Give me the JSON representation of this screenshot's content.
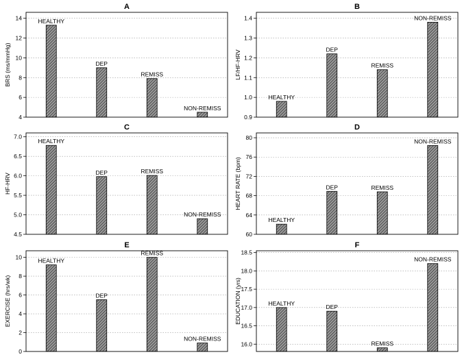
{
  "chart_data": [
    {
      "type": "bar",
      "title": "A",
      "ylabel": "BRS (ms/mmHg)",
      "categories": [
        "HEALTHY",
        "DEP",
        "REMISS",
        "NON-REMISS"
      ],
      "values": [
        13.3,
        9.0,
        7.9,
        4.5
      ],
      "ylim": [
        4,
        14.6
      ],
      "yticks": [
        4,
        6,
        8,
        10,
        12,
        14
      ],
      "ytick_labels": [
        "4",
        "6",
        "8",
        "10",
        "12",
        "14"
      ],
      "grid": true
    },
    {
      "type": "bar",
      "title": "B",
      "ylabel": "LF/HF-HRV",
      "categories": [
        "HEALTHY",
        "DEP",
        "REMISS",
        "NON-REMISS"
      ],
      "values": [
        0.98,
        1.22,
        1.14,
        1.38
      ],
      "ylim": [
        0.9,
        1.43
      ],
      "yticks": [
        0.9,
        1.0,
        1.1,
        1.2,
        1.3,
        1.4
      ],
      "ytick_labels": [
        "0.9",
        "1.0",
        "1.1",
        "1.2",
        "1.3",
        "1.4"
      ],
      "grid": true
    },
    {
      "type": "bar",
      "title": "C",
      "ylabel": "HF-HRV",
      "categories": [
        "HEALTHY",
        "DEP",
        "REMISS",
        "NON-REMISS"
      ],
      "values": [
        6.78,
        5.98,
        6.01,
        4.9
      ],
      "ylim": [
        4.5,
        7.1
      ],
      "yticks": [
        4.5,
        5.0,
        5.5,
        6.0,
        6.5,
        7.0
      ],
      "ytick_labels": [
        "4.5",
        "5.0",
        "5.5",
        "6.0",
        "6.5",
        "7.0"
      ],
      "grid": true
    },
    {
      "type": "bar",
      "title": "D",
      "ylabel": "HEART RATE (bpm)",
      "categories": [
        "HEALTHY",
        "DEP",
        "REMISS",
        "NON-REMISS"
      ],
      "values": [
        62.1,
        68.9,
        68.8,
        78.4
      ],
      "ylim": [
        60,
        81
      ],
      "yticks": [
        60,
        64,
        68,
        72,
        76,
        80
      ],
      "ytick_labels": [
        "60",
        "64",
        "68",
        "72",
        "76",
        "80"
      ],
      "grid": true
    },
    {
      "type": "bar",
      "title": "E",
      "ylabel": "EXERCISE (hrs/wk)",
      "categories": [
        "HEALTHY",
        "DEP",
        "REMISS",
        "NON-REMISS"
      ],
      "values": [
        9.2,
        5.5,
        10.0,
        0.9
      ],
      "ylim": [
        0,
        10.7
      ],
      "yticks": [
        0,
        2,
        4,
        6,
        8,
        10
      ],
      "ytick_labels": [
        "0",
        "2",
        "4",
        "6",
        "8",
        "10"
      ],
      "grid": true
    },
    {
      "type": "bar",
      "title": "F",
      "ylabel": "EDUCATION (yrs)",
      "categories": [
        "HEALTHY",
        "DEP",
        "REMISS",
        "NON-REMISS"
      ],
      "values": [
        17.0,
        16.9,
        15.9,
        18.2
      ],
      "ylim": [
        15.8,
        18.55
      ],
      "yticks": [
        16.0,
        16.5,
        17.0,
        17.5,
        18.0,
        18.5
      ],
      "ytick_labels": [
        "16.0",
        "16.5",
        "17.0",
        "17.5",
        "18.0",
        "18.5"
      ],
      "grid": true
    }
  ]
}
